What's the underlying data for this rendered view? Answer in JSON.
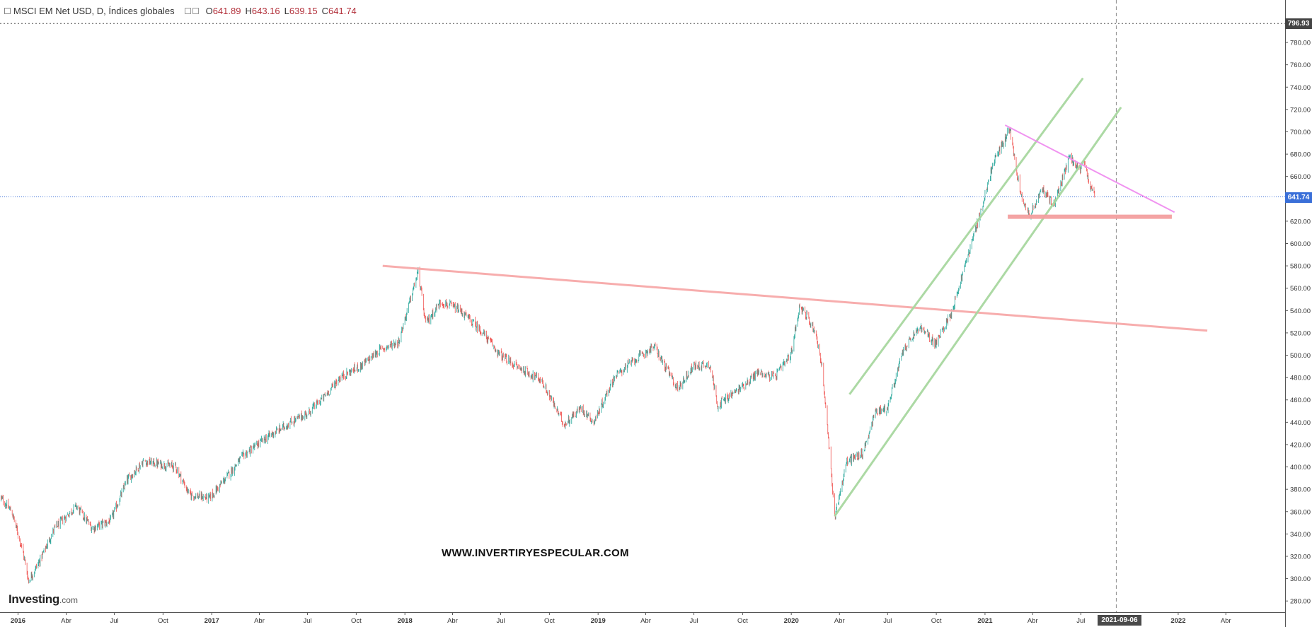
{
  "header": {
    "symbol_title": "MSCI EM Net USD, D, Índices globales",
    "open_label": "O",
    "open": "641.89",
    "high_label": "H",
    "high": "643.16",
    "low_label": "L",
    "low": "639.15",
    "close_label": "C",
    "close": "641.74"
  },
  "watermark": "WWW.INVERTIRYESPECULAR.COM",
  "logo": {
    "brand": "Investing",
    "suffix": ".com"
  },
  "price_tags": {
    "top": "796.93",
    "last": "641.74"
  },
  "crosshair_date": "2021-09-06",
  "colors": {
    "up": "#26a69a",
    "down": "#ef5350",
    "green_channel": "#a8d8a0",
    "resistance": "#f7a9a9",
    "triangle_top": "#f08ef0",
    "support": "#f4a0a0",
    "last_price": "#3a6fd8"
  },
  "chart_data": {
    "type": "candlestick",
    "yaxis": {
      "min": 280,
      "max": 800,
      "step": 20,
      "side": "right"
    },
    "y_ticks": [
      "280.00",
      "300.00",
      "320.00",
      "340.00",
      "360.00",
      "380.00",
      "400.00",
      "420.00",
      "440.00",
      "460.00",
      "480.00",
      "500.00",
      "520.00",
      "540.00",
      "560.00",
      "580.00",
      "600.00",
      "620.00",
      "640.00",
      "660.00",
      "680.00",
      "700.00",
      "720.00",
      "740.00",
      "760.00",
      "780.00"
    ],
    "x_ticks": [
      {
        "date": "2016-01-01",
        "label": "2016",
        "bold": true
      },
      {
        "date": "2016-04-01",
        "label": "Abr"
      },
      {
        "date": "2016-07-01",
        "label": "Jul"
      },
      {
        "date": "2016-10-01",
        "label": "Oct"
      },
      {
        "date": "2017-01-01",
        "label": "2017",
        "bold": true
      },
      {
        "date": "2017-04-01",
        "label": "Abr"
      },
      {
        "date": "2017-07-01",
        "label": "Jul"
      },
      {
        "date": "2017-10-01",
        "label": "Oct"
      },
      {
        "date": "2018-01-01",
        "label": "2018",
        "bold": true
      },
      {
        "date": "2018-04-01",
        "label": "Abr"
      },
      {
        "date": "2018-07-01",
        "label": "Jul"
      },
      {
        "date": "2018-10-01",
        "label": "Oct"
      },
      {
        "date": "2019-01-01",
        "label": "2019",
        "bold": true
      },
      {
        "date": "2019-04-01",
        "label": "Abr"
      },
      {
        "date": "2019-07-01",
        "label": "Jul"
      },
      {
        "date": "2019-10-01",
        "label": "Oct"
      },
      {
        "date": "2020-01-01",
        "label": "2020",
        "bold": true
      },
      {
        "date": "2020-04-01",
        "label": "Abr"
      },
      {
        "date": "2020-07-01",
        "label": "Jul"
      },
      {
        "date": "2020-10-01",
        "label": "Oct"
      },
      {
        "date": "2021-01-01",
        "label": "2021",
        "bold": true
      },
      {
        "date": "2021-04-01",
        "label": "Abr"
      },
      {
        "date": "2021-07-01",
        "label": "Jul"
      },
      {
        "date": "2022-01-01",
        "label": "2022",
        "bold": true
      },
      {
        "date": "2022-04-01",
        "label": "Abr"
      }
    ],
    "x_range": [
      "2015-11-28",
      "2022-07-22"
    ],
    "close_path": [
      [
        "2015-11-30",
        372
      ],
      [
        "2015-12-20",
        360
      ],
      [
        "2016-01-10",
        325
      ],
      [
        "2016-01-21",
        298
      ],
      [
        "2016-02-10",
        315
      ],
      [
        "2016-03-10",
        345
      ],
      [
        "2016-04-20",
        365
      ],
      [
        "2016-05-20",
        345
      ],
      [
        "2016-06-24",
        352
      ],
      [
        "2016-07-25",
        388
      ],
      [
        "2016-08-25",
        405
      ],
      [
        "2016-09-20",
        403
      ],
      [
        "2016-10-25",
        400
      ],
      [
        "2016-11-20",
        375
      ],
      [
        "2016-12-28",
        372
      ],
      [
        "2017-01-31",
        392
      ],
      [
        "2017-03-01",
        410
      ],
      [
        "2017-04-20",
        428
      ],
      [
        "2017-05-31",
        440
      ],
      [
        "2017-07-01",
        448
      ],
      [
        "2017-07-31",
        462
      ],
      [
        "2017-08-31",
        480
      ],
      [
        "2017-10-15",
        492
      ],
      [
        "2017-11-15",
        505
      ],
      [
        "2017-12-20",
        512
      ],
      [
        "2018-01-26",
        575
      ],
      [
        "2018-02-09",
        528
      ],
      [
        "2018-03-10",
        548
      ],
      [
        "2018-04-15",
        540
      ],
      [
        "2018-05-25",
        522
      ],
      [
        "2018-06-30",
        500
      ],
      [
        "2018-07-31",
        490
      ],
      [
        "2018-08-30",
        482
      ],
      [
        "2018-09-15",
        478
      ],
      [
        "2018-10-29",
        438
      ],
      [
        "2018-11-30",
        453
      ],
      [
        "2018-12-24",
        440
      ],
      [
        "2019-01-31",
        480
      ],
      [
        "2019-02-28",
        492
      ],
      [
        "2019-04-17",
        508
      ],
      [
        "2019-05-31",
        470
      ],
      [
        "2019-06-30",
        490
      ],
      [
        "2019-07-31",
        492
      ],
      [
        "2019-08-15",
        455
      ],
      [
        "2019-09-30",
        472
      ],
      [
        "2019-10-31",
        485
      ],
      [
        "2019-11-30",
        480
      ],
      [
        "2019-12-31",
        500
      ],
      [
        "2020-01-17",
        545
      ],
      [
        "2020-02-15",
        522
      ],
      [
        "2020-02-28",
        490
      ],
      [
        "2020-03-10",
        430
      ],
      [
        "2020-03-23",
        356
      ],
      [
        "2020-04-15",
        405
      ],
      [
        "2020-05-15",
        412
      ],
      [
        "2020-06-08",
        450
      ],
      [
        "2020-06-30",
        452
      ],
      [
        "2020-07-31",
        505
      ],
      [
        "2020-08-31",
        525
      ],
      [
        "2020-09-30",
        510
      ],
      [
        "2020-10-31",
        540
      ],
      [
        "2020-11-30",
        590
      ],
      [
        "2020-12-31",
        640
      ],
      [
        "2021-01-15",
        670
      ],
      [
        "2021-02-17",
        703
      ],
      [
        "2021-03-08",
        648
      ],
      [
        "2021-03-25",
        625
      ],
      [
        "2021-04-20",
        648
      ],
      [
        "2021-05-12",
        635
      ],
      [
        "2021-06-10",
        678
      ],
      [
        "2021-06-30",
        665
      ],
      [
        "2021-07-08",
        672
      ],
      [
        "2021-07-20",
        648
      ],
      [
        "2021-07-28",
        641.74
      ]
    ],
    "drawings": [
      {
        "name": "resistance-line",
        "color": "resistance",
        "width": 3,
        "points": [
          [
            "2017-11-20",
            580
          ],
          [
            "2022-02-25",
            522
          ]
        ]
      },
      {
        "name": "channel-lower-line",
        "color": "green_channel",
        "width": 3,
        "points": [
          [
            "2020-03-23",
            356
          ],
          [
            "2021-09-15",
            722
          ]
        ]
      },
      {
        "name": "channel-upper-line",
        "color": "green_channel",
        "width": 3,
        "points": [
          [
            "2020-04-20",
            465
          ],
          [
            "2021-07-05",
            748
          ]
        ]
      },
      {
        "name": "triangle-top-line",
        "color": "triangle_top",
        "width": 2,
        "points": [
          [
            "2021-02-08",
            706
          ],
          [
            "2021-12-25",
            628
          ]
        ]
      },
      {
        "name": "support-band",
        "color": "support",
        "width": 6,
        "points": [
          [
            "2021-02-13",
            624
          ],
          [
            "2021-12-20",
            624
          ]
        ]
      }
    ],
    "last_price": 641.74,
    "top_price": 796.93,
    "crosshair_date": "2021-09-06"
  }
}
